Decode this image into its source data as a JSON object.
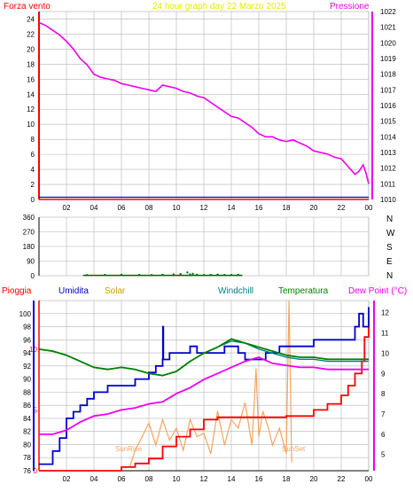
{
  "top": {
    "left_label": "Forza vento",
    "title": "24 hour graph day   22 Marzo 2025",
    "right_label": "Pressione"
  },
  "direction_labels": [
    "N",
    "W",
    "S",
    "E",
    "N"
  ],
  "bottom": {
    "legend": [
      "Pioggia",
      "Umidita",
      "Solar",
      "Windchill",
      "Temperatura",
      "Dew Point (°C)"
    ],
    "sunrise_label": "SunRise",
    "sunset_label": "SunSet"
  },
  "colors": {
    "bg": "#ffffff",
    "grid": "#b4b4b4",
    "axis": "#000000",
    "pressure": "#ee00ee",
    "wind": "#0000cc",
    "wind_gust": "#ff0000",
    "title_color": "#e8e800",
    "dir_marks": "#006400",
    "rain": "#ff0000",
    "humidity": "#0000cc",
    "solar": "#f4a460",
    "windchill": "#008080",
    "temperature": "#008000",
    "dewpoint": "#ee00ee",
    "left_axis": "#ff0000",
    "right_axis": "#ff0000"
  },
  "chart_data": [
    {
      "type": "line",
      "title": "24 hour graph day   22 Marzo 2025",
      "x_ticks": [
        "02",
        "04",
        "06",
        "08",
        "10",
        "12",
        "14",
        "16",
        "18",
        "20",
        "22",
        "00"
      ],
      "xlim": [
        0,
        24
      ],
      "ylabel": "Forza vento",
      "ylim": [
        0,
        25
      ],
      "y_ticks": [
        0,
        2,
        4,
        6,
        8,
        10,
        12,
        14,
        16,
        18,
        20,
        22,
        24
      ],
      "y2label": "Pressione",
      "y2lim": [
        1010,
        1022
      ],
      "y2_ticks": [
        1010,
        1011,
        1012,
        1013,
        1014,
        1015,
        1016,
        1017,
        1018,
        1019,
        1020,
        1021,
        1022
      ],
      "grid": true,
      "series": [
        {
          "name": "Pressione",
          "axis": "right",
          "x": [
            0.0,
            0.5,
            1.0,
            1.5,
            2.0,
            2.5,
            3.0,
            3.5,
            4.0,
            4.5,
            5.0,
            5.5,
            6.0,
            6.5,
            7.0,
            7.5,
            8.0,
            8.5,
            9.0,
            9.5,
            10.0,
            10.5,
            11.0,
            11.5,
            12.0,
            12.5,
            13.0,
            13.5,
            14.0,
            14.5,
            15.0,
            15.5,
            16.0,
            16.5,
            17.0,
            17.5,
            18.0,
            18.5,
            19.0,
            19.5,
            20.0,
            20.5,
            21.0,
            21.5,
            22.0,
            22.5,
            23.0,
            23.3,
            23.6,
            23.8,
            24.0
          ],
          "y": [
            1021.3,
            1021.1,
            1020.8,
            1020.5,
            1020.1,
            1019.6,
            1019.0,
            1018.6,
            1018.0,
            1017.8,
            1017.7,
            1017.6,
            1017.4,
            1017.3,
            1017.2,
            1017.1,
            1017.0,
            1016.9,
            1017.3,
            1017.2,
            1017.1,
            1016.9,
            1016.8,
            1016.6,
            1016.5,
            1016.2,
            1015.9,
            1015.6,
            1015.3,
            1015.2,
            1014.9,
            1014.6,
            1014.2,
            1014.0,
            1014.0,
            1013.8,
            1013.7,
            1013.8,
            1013.6,
            1013.4,
            1013.1,
            1013.0,
            1012.9,
            1012.7,
            1012.6,
            1012.1,
            1011.6,
            1011.8,
            1012.2,
            1011.7,
            1011.0
          ]
        },
        {
          "name": "Forza vento",
          "axis": "left",
          "x": [
            0,
            24
          ],
          "y": [
            0.3,
            0.3
          ]
        },
        {
          "name": "Raffica",
          "axis": "left",
          "x": [
            0,
            24
          ],
          "y": [
            0.0,
            0.0
          ]
        }
      ]
    },
    {
      "type": "scatter",
      "ylabel": "direction",
      "ylim": [
        0,
        360
      ],
      "y_ticks": [
        0,
        90,
        180,
        270,
        360
      ],
      "xlim": [
        0,
        24
      ],
      "grid": true,
      "series": [
        {
          "name": "Direzione",
          "x": [
            3.5,
            4.8,
            6.0,
            7.3,
            8.2,
            9.0,
            9.8,
            10.3,
            10.8,
            11.0,
            11.2,
            11.5,
            12.0,
            12.5,
            13.0,
            13.5,
            14.0,
            14.5
          ],
          "y": [
            4,
            5,
            6,
            5,
            4,
            6,
            8,
            10,
            20,
            8,
            12,
            6,
            4,
            5,
            7,
            5,
            4,
            6
          ]
        }
      ]
    },
    {
      "type": "line",
      "xlim": [
        0,
        24
      ],
      "x_ticks": [
        "02",
        "04",
        "06",
        "08",
        "10",
        "12",
        "14",
        "16",
        "18",
        "20",
        "22",
        "00"
      ],
      "ylabel": "Umidita",
      "ylim": [
        76,
        102
      ],
      "y_ticks": [
        76,
        78,
        80,
        82,
        84,
        86,
        88,
        90,
        92,
        94,
        96,
        98,
        100
      ],
      "y2label": "Dew Point (°C)",
      "y2lim": [
        4.2,
        12.6
      ],
      "y2_ticks": [
        5,
        6,
        7,
        8,
        9,
        10,
        11,
        12
      ],
      "rain_ticks": [
        0,
        5,
        10
      ],
      "rain_lim": [
        0,
        14
      ],
      "grid": true,
      "series": [
        {
          "name": "Umidita",
          "axis": "left",
          "x": [
            0.0,
            0.5,
            1.0,
            1.5,
            2.0,
            2.5,
            3.0,
            3.5,
            4.0,
            4.5,
            5.0,
            5.5,
            6.0,
            6.5,
            7.0,
            7.5,
            8.0,
            8.5,
            9.0,
            9.02,
            9.05,
            9.5,
            10.0,
            10.5,
            11.0,
            11.5,
            12.0,
            12.5,
            13.0,
            13.5,
            14.0,
            14.5,
            15.0,
            15.5,
            16.0,
            16.5,
            17.0,
            17.5,
            18.0,
            18.5,
            19.0,
            19.5,
            20.0,
            20.5,
            21.0,
            21.5,
            22.0,
            22.5,
            23.0,
            23.3,
            23.6,
            24.0
          ],
          "y": [
            77,
            77,
            79,
            81,
            84,
            85,
            86,
            87,
            88,
            88,
            89,
            89,
            89,
            89,
            90,
            90,
            91,
            92,
            93,
            98,
            93,
            94,
            94,
            94,
            95,
            94,
            94,
            94,
            94,
            95,
            95,
            94,
            93,
            93,
            93,
            94,
            94,
            95,
            95,
            95,
            95,
            95,
            96,
            96,
            96,
            96,
            96,
            96,
            98,
            100,
            98,
            101
          ]
        },
        {
          "name": "Windchill",
          "axis": "right",
          "x": [
            0.0,
            1.0,
            2.0,
            3.0,
            4.0,
            5.0,
            6.0,
            7.0,
            8.0,
            9.0,
            10.0,
            11.0,
            12.0,
            13.0,
            14.0,
            15.0,
            16.0,
            17.0,
            18.0,
            19.0,
            20.0,
            21.0,
            22.0,
            23.0,
            24.0
          ],
          "y": [
            10.2,
            10.1,
            9.9,
            9.6,
            9.3,
            9.2,
            9.3,
            9.2,
            9.0,
            8.9,
            9.1,
            9.6,
            10.0,
            10.3,
            10.6,
            10.5,
            10.2,
            10.0,
            9.8,
            9.7,
            9.7,
            9.6,
            9.6,
            9.6,
            9.6
          ]
        },
        {
          "name": "Temperatura",
          "axis": "right",
          "x": [
            0.0,
            1.0,
            2.0,
            3.0,
            4.0,
            5.0,
            6.0,
            7.0,
            8.0,
            9.0,
            10.0,
            11.0,
            12.0,
            13.0,
            14.0,
            15.0,
            16.0,
            17.0,
            18.0,
            19.0,
            20.0,
            21.0,
            22.0,
            23.0,
            24.0
          ],
          "y": [
            10.2,
            10.1,
            9.9,
            9.6,
            9.3,
            9.2,
            9.3,
            9.2,
            9.0,
            8.9,
            9.1,
            9.6,
            10.0,
            10.3,
            10.7,
            10.5,
            10.3,
            10.1,
            9.9,
            9.8,
            9.8,
            9.7,
            9.7,
            9.7,
            9.7
          ]
        },
        {
          "name": "Dew Point (°C)",
          "axis": "right",
          "x": [
            0.0,
            1.0,
            2.0,
            3.0,
            4.0,
            5.0,
            6.0,
            7.0,
            8.0,
            9.0,
            10.0,
            11.0,
            12.0,
            13.0,
            14.0,
            15.0,
            16.0,
            17.0,
            18.0,
            19.0,
            20.0,
            21.0,
            22.0,
            23.0,
            24.0
          ],
          "y": [
            6.0,
            6.0,
            6.2,
            6.6,
            6.9,
            7.0,
            7.2,
            7.3,
            7.5,
            7.6,
            8.0,
            8.3,
            8.7,
            9.0,
            9.3,
            9.6,
            9.8,
            9.5,
            9.4,
            9.3,
            9.3,
            9.2,
            9.2,
            9.2,
            9.2
          ]
        },
        {
          "name": "Pioggia",
          "axis": "rain",
          "x": [
            0.0,
            3.0,
            6.0,
            7.0,
            8.0,
            9.0,
            10.0,
            11.0,
            12.0,
            13.0,
            16.0,
            18.0,
            20.0,
            21.0,
            22.0,
            22.5,
            23.0,
            23.5,
            23.7,
            24.0
          ],
          "y": [
            0.0,
            0.0,
            0.3,
            0.6,
            1.0,
            2.0,
            2.8,
            3.4,
            4.2,
            4.4,
            4.4,
            4.5,
            5.0,
            5.5,
            6.2,
            7.0,
            8.0,
            9.0,
            11.0,
            12.5
          ]
        },
        {
          "name": "Solar",
          "axis": "solar",
          "x": [
            6.6,
            7.0,
            7.5,
            8.0,
            8.5,
            9.0,
            9.5,
            10.0,
            10.5,
            11.0,
            11.5,
            12.0,
            12.5,
            13.0,
            13.5,
            14.0,
            14.5,
            15.0,
            15.5,
            15.8,
            16.0,
            16.3,
            16.7,
            17.0,
            17.5,
            18.0,
            18.2,
            18.4
          ],
          "y": [
            2,
            12,
            20,
            28,
            15,
            30,
            18,
            25,
            12,
            30,
            20,
            22,
            10,
            35,
            15,
            30,
            25,
            40,
            15,
            60,
            20,
            35,
            25,
            15,
            25,
            10,
            100,
            5
          ],
          "ylim": [
            0,
            100
          ]
        }
      ]
    }
  ]
}
